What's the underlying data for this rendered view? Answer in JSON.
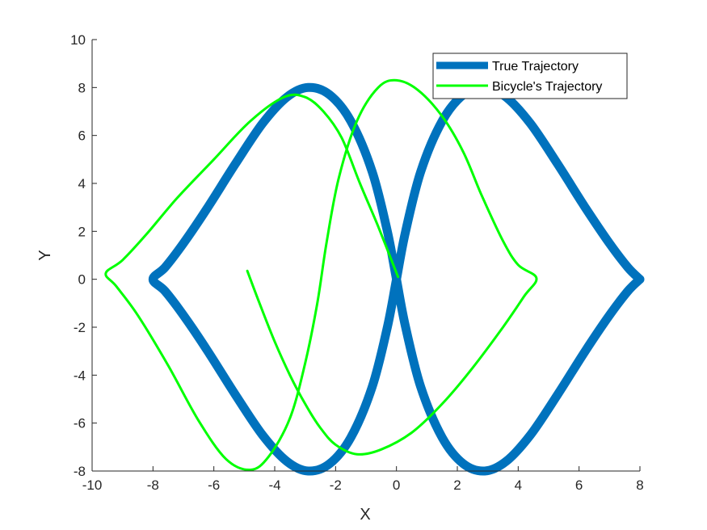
{
  "chart_data": {
    "type": "line",
    "title": "",
    "xlabel": "X",
    "ylabel": "Y",
    "xlim": [
      -10,
      8
    ],
    "ylim": [
      -8,
      10
    ],
    "xticks": [
      -10,
      -8,
      -6,
      -4,
      -2,
      0,
      2,
      4,
      6,
      8
    ],
    "yticks": [
      -8,
      -6,
      -4,
      -2,
      0,
      2,
      4,
      6,
      8,
      10
    ],
    "xtick_labels": [
      "-10",
      "-8",
      "-6",
      "-4",
      "-2",
      "0",
      "2",
      "4",
      "6",
      "8"
    ],
    "ytick_labels": [
      "-8",
      "-6",
      "-4",
      "-2",
      "0",
      "2",
      "4",
      "6",
      "8",
      "10"
    ],
    "grid": false,
    "legend_position": "top-right",
    "series": [
      {
        "name": "True Trajectory",
        "color": "#0072BD",
        "points": [
          [
            8.0,
            0.0
          ],
          [
            7.6,
            -0.5
          ],
          [
            7.0,
            -1.5
          ],
          [
            6.2,
            -3.0
          ],
          [
            5.3,
            -4.8
          ],
          [
            4.4,
            -6.5
          ],
          [
            3.6,
            -7.6
          ],
          [
            2.9,
            -8.0
          ],
          [
            2.2,
            -7.7
          ],
          [
            1.5,
            -6.6
          ],
          [
            0.8,
            -4.5
          ],
          [
            0.3,
            -2.0
          ],
          [
            0.0,
            0.0
          ],
          [
            -0.3,
            2.0
          ],
          [
            -0.8,
            4.5
          ],
          [
            -1.5,
            6.6
          ],
          [
            -2.2,
            7.7
          ],
          [
            -2.9,
            8.0
          ],
          [
            -3.6,
            7.6
          ],
          [
            -4.4,
            6.5
          ],
          [
            -5.3,
            4.8
          ],
          [
            -6.2,
            3.0
          ],
          [
            -7.0,
            1.5
          ],
          [
            -7.6,
            0.5
          ],
          [
            -8.0,
            0.0
          ],
          [
            -7.6,
            -0.5
          ],
          [
            -7.0,
            -1.5
          ],
          [
            -6.2,
            -3.0
          ],
          [
            -5.3,
            -4.8
          ],
          [
            -4.4,
            -6.5
          ],
          [
            -3.6,
            -7.6
          ],
          [
            -2.9,
            -8.0
          ],
          [
            -2.2,
            -7.7
          ],
          [
            -1.5,
            -6.6
          ],
          [
            -0.8,
            -4.5
          ],
          [
            -0.3,
            -2.0
          ],
          [
            0.0,
            0.0
          ],
          [
            0.3,
            2.0
          ],
          [
            0.8,
            4.5
          ],
          [
            1.5,
            6.6
          ],
          [
            2.2,
            7.7
          ],
          [
            2.9,
            8.0
          ],
          [
            3.6,
            7.6
          ],
          [
            4.4,
            6.5
          ],
          [
            5.3,
            4.8
          ],
          [
            6.2,
            3.0
          ],
          [
            7.0,
            1.5
          ],
          [
            7.6,
            0.5
          ],
          [
            8.0,
            0.0
          ]
        ]
      },
      {
        "name": "Bicycle's Trajectory",
        "color": "#00FF00",
        "points": [
          [
            -4.9,
            0.35
          ],
          [
            -4.5,
            -1.0
          ],
          [
            -4.0,
            -2.6
          ],
          [
            -3.5,
            -4.0
          ],
          [
            -3.0,
            -5.2
          ],
          [
            -2.5,
            -6.2
          ],
          [
            -2.0,
            -6.9
          ],
          [
            -1.3,
            -7.3
          ],
          [
            -0.5,
            -7.1
          ],
          [
            0.5,
            -6.4
          ],
          [
            1.5,
            -5.2
          ],
          [
            2.5,
            -3.7
          ],
          [
            3.5,
            -2.0
          ],
          [
            4.2,
            -0.7
          ],
          [
            4.6,
            0.05
          ],
          [
            4.0,
            0.6
          ],
          [
            3.5,
            1.6
          ],
          [
            2.8,
            3.5
          ],
          [
            2.2,
            5.3
          ],
          [
            1.5,
            6.8
          ],
          [
            0.7,
            7.9
          ],
          [
            0.0,
            8.3
          ],
          [
            -0.6,
            8.0
          ],
          [
            -1.3,
            6.6
          ],
          [
            -1.9,
            4.2
          ],
          [
            -2.3,
            1.5
          ],
          [
            -2.6,
            -1.0
          ],
          [
            -3.0,
            -3.5
          ],
          [
            -3.5,
            -5.8
          ],
          [
            -4.2,
            -7.4
          ],
          [
            -4.8,
            -7.95
          ],
          [
            -5.6,
            -7.5
          ],
          [
            -6.5,
            -5.9
          ],
          [
            -7.5,
            -3.6
          ],
          [
            -8.5,
            -1.5
          ],
          [
            -9.2,
            -0.3
          ],
          [
            -9.55,
            0.25
          ],
          [
            -9.0,
            0.8
          ],
          [
            -8.2,
            1.9
          ],
          [
            -7.2,
            3.4
          ],
          [
            -6.0,
            5.0
          ],
          [
            -4.8,
            6.6
          ],
          [
            -3.7,
            7.6
          ],
          [
            -3.0,
            7.6
          ],
          [
            -2.4,
            7.0
          ],
          [
            -1.8,
            5.9
          ],
          [
            -1.2,
            4.0
          ],
          [
            -0.6,
            2.2
          ],
          [
            0.05,
            0.1
          ]
        ]
      }
    ]
  }
}
